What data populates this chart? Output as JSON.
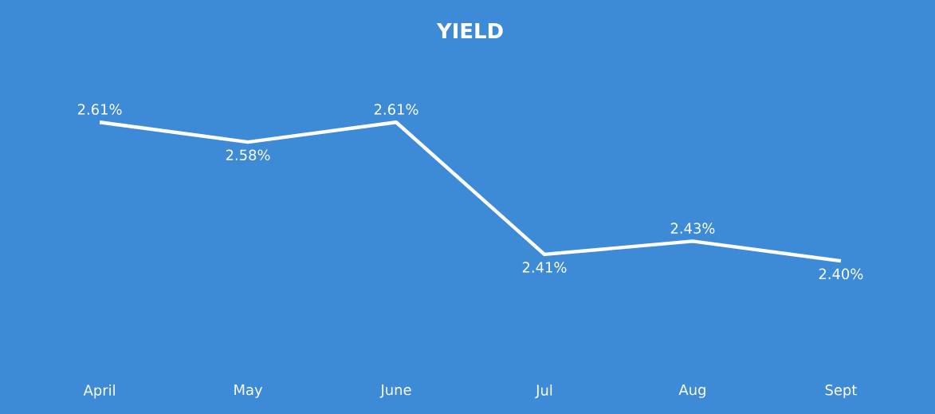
{
  "chart_data": {
    "type": "line",
    "title": "YIELD",
    "categories": [
      "April",
      "May",
      "June",
      "Jul",
      "Aug",
      "Sept"
    ],
    "values": [
      2.61,
      2.58,
      2.61,
      2.41,
      2.43,
      2.4
    ],
    "value_labels": [
      "2.61%",
      "2.58%",
      "2.61%",
      "2.41%",
      "2.43%",
      "2.40%"
    ],
    "color": "#ffffff",
    "marker": "none",
    "line_style": "solid"
  }
}
